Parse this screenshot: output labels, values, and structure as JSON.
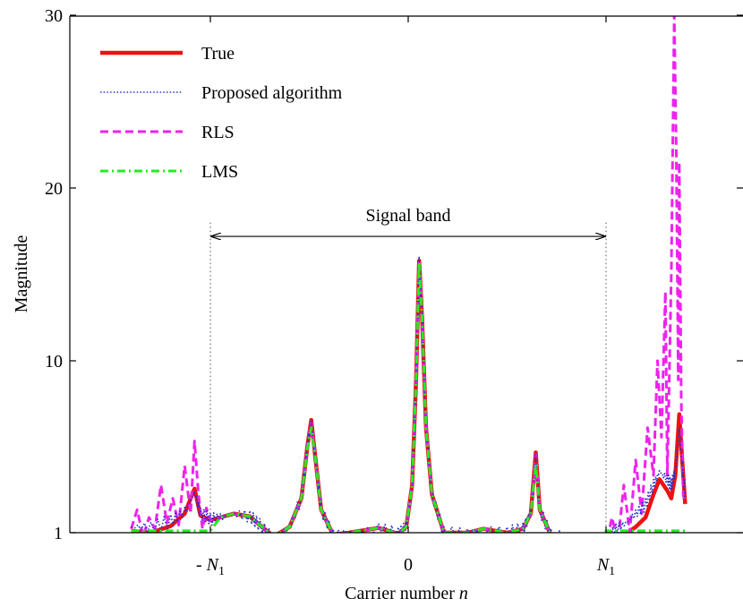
{
  "chart_data": {
    "type": "line",
    "title": "",
    "xlabel": "Carrier number n",
    "xlabel_parts": {
      "text": "Carrier number ",
      "var": "n"
    },
    "ylabel": "Magnitude",
    "xlim": [
      -1.4,
      1.4
    ],
    "ylim": [
      0,
      30
    ],
    "y_ticks": [
      1,
      10,
      20,
      30
    ],
    "y_tick_labels": [
      "1",
      "10",
      "20",
      "30"
    ],
    "x_ticks": [
      {
        "value": -1,
        "prefix": "- ",
        "base": "N",
        "sub": "1"
      },
      {
        "value": 0,
        "prefix": "",
        "base": "0",
        "sub": ""
      },
      {
        "value": 1,
        "prefix": "",
        "base": "N",
        "sub": "1"
      }
    ],
    "grid": false,
    "legend_position": "top-left",
    "annotation": {
      "text": "Signal band",
      "from": -1,
      "to": 1,
      "y": 17.2
    },
    "band_markers": {
      "x": [
        -1,
        1
      ],
      "y_top": 18
    },
    "series": [
      {
        "name": "True",
        "color": "#ee1111",
        "style": "solid",
        "points": [
          [
            -1.4,
            1.1
          ],
          [
            -1.3,
            1.0
          ],
          [
            -1.2,
            1.35
          ],
          [
            -1.13,
            2.0
          ],
          [
            -1.08,
            3.3
          ],
          [
            -1.05,
            1.9
          ],
          [
            -1.0,
            1.65
          ],
          [
            -0.95,
            1.8
          ],
          [
            -0.88,
            2.0
          ],
          [
            -0.8,
            1.85
          ],
          [
            -0.75,
            1.4
          ],
          [
            -0.68,
            0.8
          ],
          [
            -0.6,
            1.3
          ],
          [
            -0.54,
            2.8
          ],
          [
            -0.51,
            5.5
          ],
          [
            -0.49,
            6.9
          ],
          [
            -0.47,
            5.0
          ],
          [
            -0.44,
            2.2
          ],
          [
            -0.38,
            0.9
          ],
          [
            -0.3,
            1.0
          ],
          [
            -0.15,
            1.25
          ],
          [
            -0.05,
            0.95
          ],
          [
            -0.01,
            1.3
          ],
          [
            0.02,
            3.5
          ],
          [
            0.04,
            9.0
          ],
          [
            0.055,
            15.8
          ],
          [
            0.07,
            12.5
          ],
          [
            0.09,
            6.5
          ],
          [
            0.12,
            3.0
          ],
          [
            0.18,
            1.0
          ],
          [
            0.3,
            1.0
          ],
          [
            0.38,
            1.2
          ],
          [
            0.5,
            1.0
          ],
          [
            0.58,
            1.2
          ],
          [
            0.62,
            2.0
          ],
          [
            0.645,
            5.2
          ],
          [
            0.665,
            2.2
          ],
          [
            0.72,
            0.9
          ],
          [
            0.85,
            0.6
          ],
          [
            0.95,
            0.35
          ],
          [
            1.0,
            0.3
          ],
          [
            1.05,
            0.55
          ],
          [
            1.1,
            0.95
          ],
          [
            1.15,
            1.3
          ],
          [
            1.2,
            1.8
          ],
          [
            1.24,
            3.0
          ],
          [
            1.27,
            3.8
          ],
          [
            1.31,
            3.2
          ],
          [
            1.33,
            2.8
          ],
          [
            1.35,
            4.0
          ],
          [
            1.37,
            7.2
          ],
          [
            1.385,
            4.8
          ],
          [
            1.4,
            2.5
          ]
        ]
      },
      {
        "name": "Proposed algorithm",
        "color": "#2233cc",
        "style": "dotted",
        "noise": 0.35,
        "points": [
          [
            -1.4,
            1.3
          ],
          [
            -1.3,
            1.3
          ],
          [
            -1.2,
            1.6
          ],
          [
            -1.13,
            2.1
          ],
          [
            -1.08,
            3.1
          ],
          [
            -1.05,
            2.0
          ],
          [
            -1.0,
            1.7
          ],
          [
            -0.95,
            1.8
          ],
          [
            -0.88,
            2.0
          ],
          [
            -0.8,
            1.85
          ],
          [
            -0.75,
            1.4
          ],
          [
            -0.68,
            0.8
          ],
          [
            -0.6,
            1.3
          ],
          [
            -0.54,
            2.8
          ],
          [
            -0.51,
            5.5
          ],
          [
            -0.49,
            6.8
          ],
          [
            -0.47,
            5.0
          ],
          [
            -0.44,
            2.2
          ],
          [
            -0.38,
            0.9
          ],
          [
            -0.3,
            1.0
          ],
          [
            -0.15,
            1.25
          ],
          [
            -0.05,
            0.95
          ],
          [
            -0.01,
            1.3
          ],
          [
            0.02,
            3.5
          ],
          [
            0.04,
            9.0
          ],
          [
            0.055,
            15.7
          ],
          [
            0.07,
            12.5
          ],
          [
            0.09,
            6.5
          ],
          [
            0.12,
            3.0
          ],
          [
            0.18,
            1.0
          ],
          [
            0.3,
            1.0
          ],
          [
            0.38,
            1.2
          ],
          [
            0.5,
            1.0
          ],
          [
            0.58,
            1.2
          ],
          [
            0.62,
            2.0
          ],
          [
            0.645,
            5.0
          ],
          [
            0.665,
            2.2
          ],
          [
            0.72,
            0.9
          ],
          [
            0.85,
            0.7
          ],
          [
            0.95,
            0.5
          ],
          [
            1.0,
            0.5
          ],
          [
            1.05,
            1.2
          ],
          [
            1.1,
            1.5
          ],
          [
            1.15,
            2.0
          ],
          [
            1.2,
            2.5
          ],
          [
            1.24,
            3.5
          ],
          [
            1.27,
            4.2
          ],
          [
            1.31,
            3.8
          ],
          [
            1.33,
            3.5
          ],
          [
            1.35,
            4.2
          ],
          [
            1.37,
            6.5
          ],
          [
            1.385,
            4.5
          ],
          [
            1.4,
            3.0
          ]
        ]
      },
      {
        "name": "RLS",
        "color": "#ee22ee",
        "style": "dashed",
        "points": [
          [
            -1.4,
            1.2
          ],
          [
            -1.37,
            2.2
          ],
          [
            -1.34,
            0.8
          ],
          [
            -1.31,
            1.8
          ],
          [
            -1.28,
            1.2
          ],
          [
            -1.25,
            3.5
          ],
          [
            -1.22,
            1.5
          ],
          [
            -1.19,
            2.8
          ],
          [
            -1.16,
            1.4
          ],
          [
            -1.13,
            4.5
          ],
          [
            -1.1,
            2.0
          ],
          [
            -1.08,
            5.8
          ],
          [
            -1.06,
            3.0
          ],
          [
            -1.04,
            1.2
          ],
          [
            -1.02,
            2.3
          ],
          [
            -1.0,
            1.65
          ],
          [
            -0.95,
            1.8
          ],
          [
            -0.88,
            2.0
          ],
          [
            -0.8,
            1.85
          ],
          [
            -0.75,
            1.4
          ],
          [
            -0.68,
            0.8
          ],
          [
            -0.6,
            1.3
          ],
          [
            -0.54,
            2.8
          ],
          [
            -0.51,
            5.5
          ],
          [
            -0.49,
            6.8
          ],
          [
            -0.47,
            5.0
          ],
          [
            -0.44,
            2.2
          ],
          [
            -0.38,
            0.9
          ],
          [
            -0.3,
            1.0
          ],
          [
            -0.15,
            1.25
          ],
          [
            -0.05,
            0.95
          ],
          [
            -0.01,
            1.3
          ],
          [
            0.02,
            3.5
          ],
          [
            0.04,
            9.0
          ],
          [
            0.055,
            15.8
          ],
          [
            0.07,
            12.5
          ],
          [
            0.09,
            6.5
          ],
          [
            0.12,
            3.0
          ],
          [
            0.18,
            1.0
          ],
          [
            0.3,
            1.0
          ],
          [
            0.38,
            1.2
          ],
          [
            0.5,
            1.0
          ],
          [
            0.58,
            1.2
          ],
          [
            0.62,
            2.0
          ],
          [
            0.645,
            5.1
          ],
          [
            0.665,
            2.2
          ],
          [
            0.72,
            0.9
          ],
          [
            0.85,
            0.6
          ],
          [
            0.95,
            0.35
          ],
          [
            1.0,
            0.3
          ],
          [
            1.03,
            1.8
          ],
          [
            1.06,
            0.5
          ],
          [
            1.09,
            3.5
          ],
          [
            1.12,
            1.0
          ],
          [
            1.15,
            4.8
          ],
          [
            1.18,
            2.0
          ],
          [
            1.21,
            6.5
          ],
          [
            1.24,
            4.0
          ],
          [
            1.26,
            10.0
          ],
          [
            1.28,
            6.0
          ],
          [
            1.3,
            14.0
          ],
          [
            1.31,
            4.0
          ],
          [
            1.33,
            15.0
          ],
          [
            1.345,
            30.0
          ],
          [
            1.355,
            22.0
          ],
          [
            1.365,
            9.0
          ],
          [
            1.37,
            21.5
          ],
          [
            1.38,
            8.0
          ],
          [
            1.39,
            3.0
          ],
          [
            1.4,
            2.5
          ]
        ]
      },
      {
        "name": "LMS",
        "color": "#22ee22",
        "style": "dashdot",
        "points": [
          [
            -1.4,
            1.1
          ],
          [
            -1.0,
            1.1
          ],
          [
            -0.95,
            1.8
          ],
          [
            -0.88,
            2.0
          ],
          [
            -0.8,
            1.85
          ],
          [
            -0.75,
            1.4
          ],
          [
            -0.68,
            0.8
          ],
          [
            -0.6,
            1.3
          ],
          [
            -0.54,
            2.8
          ],
          [
            -0.51,
            5.4
          ],
          [
            -0.49,
            6.5
          ],
          [
            -0.47,
            5.0
          ],
          [
            -0.44,
            2.2
          ],
          [
            -0.38,
            0.9
          ],
          [
            -0.3,
            1.0
          ],
          [
            -0.15,
            1.25
          ],
          [
            -0.05,
            0.95
          ],
          [
            -0.01,
            1.3
          ],
          [
            0.02,
            3.5
          ],
          [
            0.04,
            9.0
          ],
          [
            0.055,
            15.7
          ],
          [
            0.07,
            12.5
          ],
          [
            0.09,
            6.5
          ],
          [
            0.12,
            3.0
          ],
          [
            0.18,
            1.0
          ],
          [
            0.3,
            1.0
          ],
          [
            0.38,
            1.2
          ],
          [
            0.5,
            1.0
          ],
          [
            0.58,
            1.2
          ],
          [
            0.62,
            2.0
          ],
          [
            0.645,
            4.6
          ],
          [
            0.665,
            2.2
          ],
          [
            0.72,
            0.9
          ],
          [
            0.85,
            0.6
          ],
          [
            0.95,
            0.35
          ],
          [
            1.0,
            0.3
          ],
          [
            1.0,
            1.1
          ],
          [
            1.4,
            1.1
          ]
        ]
      }
    ]
  }
}
